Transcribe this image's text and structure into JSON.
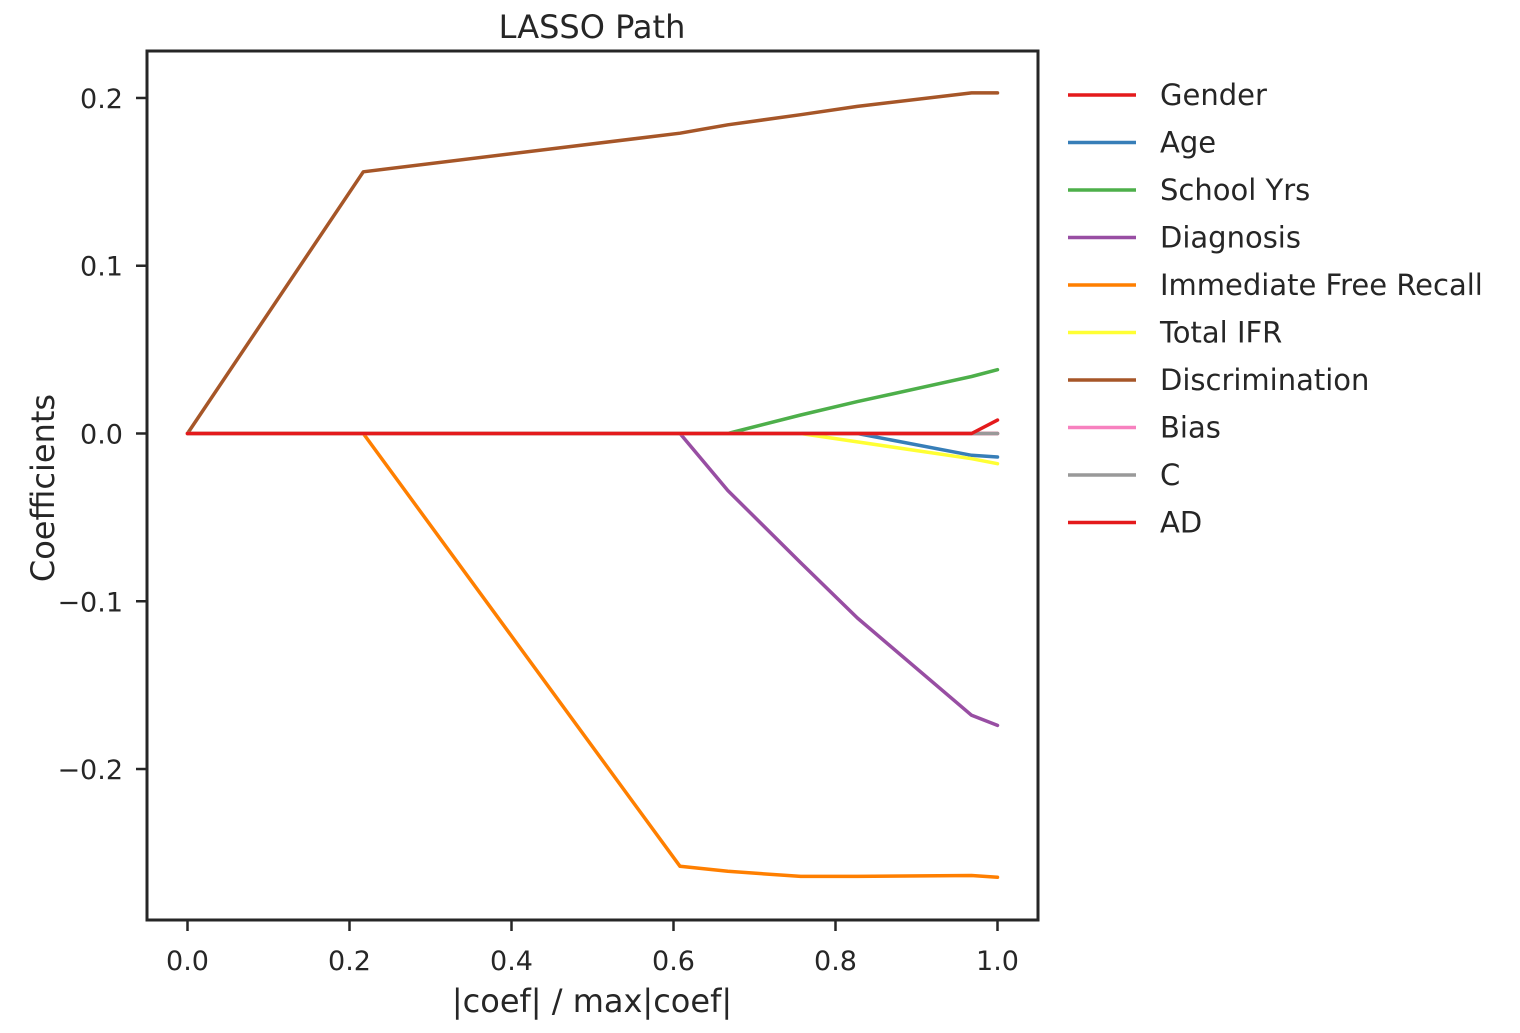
{
  "chart_data": {
    "type": "line",
    "title": "LASSO Path",
    "xlabel": "|coef| / max|coef|",
    "ylabel": "Coefficients",
    "xlim": [
      -0.05,
      1.05
    ],
    "ylim": [
      -0.29,
      0.228
    ],
    "xticks": [
      0.0,
      0.2,
      0.4,
      0.6,
      0.8,
      1.0
    ],
    "xtick_labels": [
      "0.0",
      "0.2",
      "0.4",
      "0.6",
      "0.8",
      "1.0"
    ],
    "yticks": [
      0.2,
      0.1,
      0.0,
      -0.1,
      -0.2
    ],
    "ytick_labels": [
      "0.2",
      "0.1",
      "0.0",
      "−0.1",
      "−0.2"
    ],
    "grid": false,
    "legend_position": "outside right, top",
    "series": [
      {
        "name": "Gender",
        "color": "#e41a1c",
        "x": [
          0.0,
          0.217,
          0.608,
          0.667,
          0.757,
          0.827,
          0.968,
          1.0
        ],
        "y": [
          0.0,
          0.0,
          0.0,
          0.0,
          0.0,
          0.0,
          0.0,
          0.0
        ]
      },
      {
        "name": "Age",
        "color": "#377eb8",
        "x": [
          0.0,
          0.217,
          0.608,
          0.667,
          0.757,
          0.827,
          0.968,
          1.0
        ],
        "y": [
          0.0,
          0.0,
          0.0,
          0.0,
          0.0,
          0.0,
          -0.013,
          -0.014
        ]
      },
      {
        "name": "School Yrs",
        "color": "#4daf4a",
        "x": [
          0.0,
          0.217,
          0.608,
          0.667,
          0.757,
          0.827,
          0.968,
          1.0
        ],
        "y": [
          0.0,
          0.0,
          0.0,
          0.0,
          0.011,
          0.019,
          0.034,
          0.038
        ]
      },
      {
        "name": "Diagnosis",
        "color": "#984ea3",
        "x": [
          0.0,
          0.217,
          0.608,
          0.667,
          0.757,
          0.827,
          0.968,
          1.0
        ],
        "y": [
          0.0,
          0.0,
          0.0,
          -0.034,
          -0.077,
          -0.11,
          -0.168,
          -0.174
        ]
      },
      {
        "name": "Immediate Free Recall",
        "color": "#ff7f00",
        "x": [
          0.0,
          0.217,
          0.608,
          0.667,
          0.757,
          0.827,
          0.968,
          1.0
        ],
        "y": [
          0.0,
          0.0,
          -0.258,
          -0.261,
          -0.264,
          -0.264,
          -0.2635,
          -0.2645
        ]
      },
      {
        "name": "Total IFR",
        "color": "#ffff33",
        "x": [
          0.0,
          0.217,
          0.608,
          0.667,
          0.757,
          0.827,
          0.968,
          1.0
        ],
        "y": [
          0.0,
          0.0,
          0.0,
          0.0,
          0.0,
          -0.005,
          -0.015,
          -0.018
        ]
      },
      {
        "name": "Discrimination",
        "color": "#a65628",
        "x": [
          0.0,
          0.217,
          0.608,
          0.667,
          0.757,
          0.827,
          0.968,
          1.0
        ],
        "y": [
          0.0,
          0.156,
          0.179,
          0.184,
          0.19,
          0.195,
          0.203,
          0.203
        ]
      },
      {
        "name": "Bias",
        "color": "#f781bf",
        "x": [
          0.0,
          0.217,
          0.608,
          0.667,
          0.757,
          0.827,
          0.968,
          1.0
        ],
        "y": [
          0.0,
          0.0,
          0.0,
          0.0,
          0.0,
          0.0,
          0.0,
          0.0
        ]
      },
      {
        "name": "C",
        "color": "#999999",
        "x": [
          0.0,
          0.217,
          0.608,
          0.667,
          0.757,
          0.827,
          0.968,
          1.0
        ],
        "y": [
          0.0,
          0.0,
          0.0,
          0.0,
          0.0,
          0.0,
          0.0,
          0.0
        ]
      },
      {
        "name": "AD",
        "color": "#e41a1c",
        "x": [
          0.0,
          0.217,
          0.608,
          0.667,
          0.757,
          0.827,
          0.968,
          1.0
        ],
        "y": [
          0.0,
          0.0,
          0.0,
          0.0,
          0.0,
          0.0,
          0.0,
          0.008
        ]
      }
    ]
  }
}
